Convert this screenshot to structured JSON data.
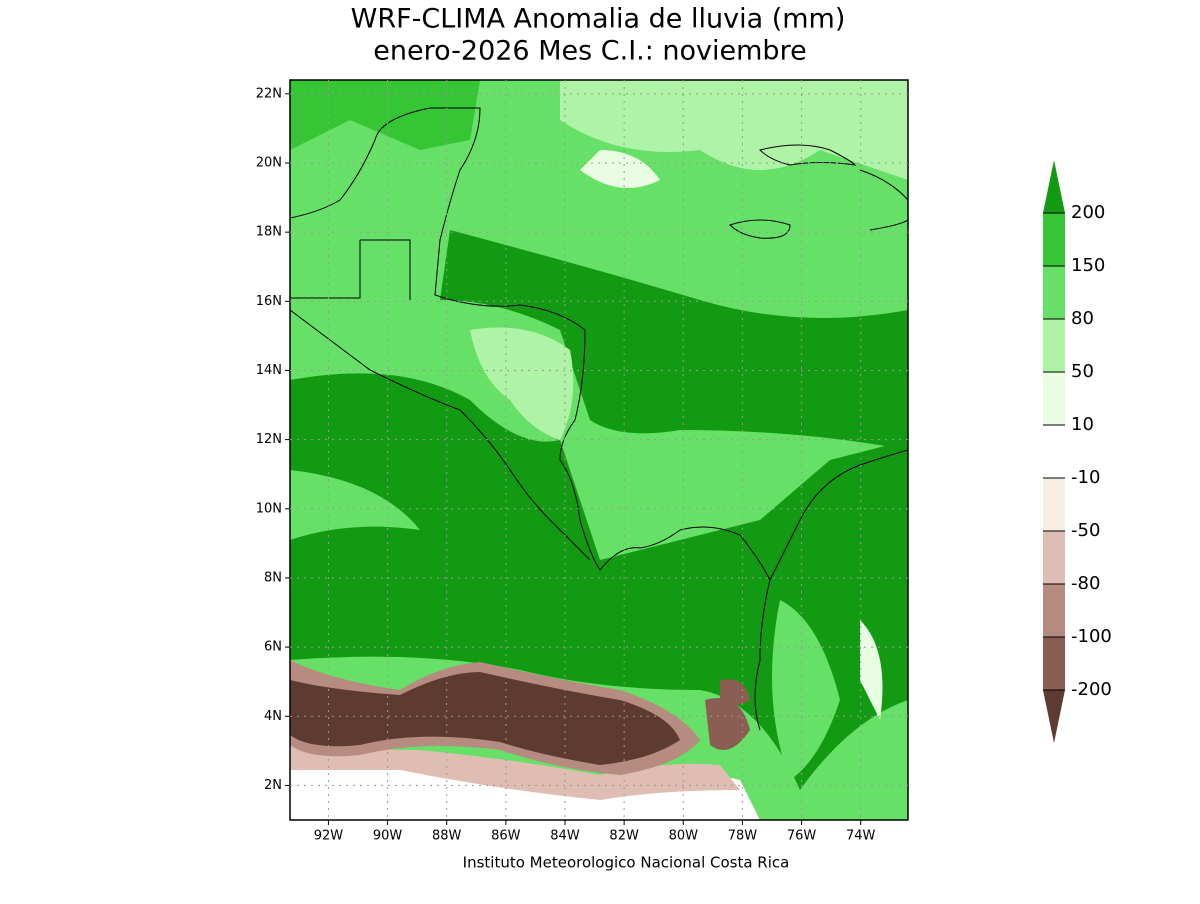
{
  "title": "WRF-CLIMA Anomalia de lluvia (mm)",
  "subtitle": "enero-2026 Mes C.I.: noviembre",
  "footer": "Instituto Meteorologico Nacional Costa Rica",
  "map": {
    "lonlim": [
      -93.3,
      -72.4
    ],
    "latlim": [
      1,
      22.4
    ],
    "grid": true,
    "lon_ticks": [
      {
        "value": -92,
        "label": "92W"
      },
      {
        "value": -90,
        "label": "90W"
      },
      {
        "value": -88,
        "label": "88W"
      },
      {
        "value": -86,
        "label": "86W"
      },
      {
        "value": -84,
        "label": "84W"
      },
      {
        "value": -82,
        "label": "82W"
      },
      {
        "value": -80,
        "label": "80W"
      },
      {
        "value": -78,
        "label": "78W"
      },
      {
        "value": -76,
        "label": "76W"
      },
      {
        "value": -74,
        "label": "74W"
      }
    ],
    "lat_ticks": [
      {
        "value": 2,
        "label": "2N"
      },
      {
        "value": 4,
        "label": "4N"
      },
      {
        "value": 6,
        "label": "6N"
      },
      {
        "value": 8,
        "label": "8N"
      },
      {
        "value": 10,
        "label": "10N"
      },
      {
        "value": 12,
        "label": "12N"
      },
      {
        "value": 14,
        "label": "14N"
      },
      {
        "value": 16,
        "label": "16N"
      },
      {
        "value": 18,
        "label": "18N"
      },
      {
        "value": 20,
        "label": "20N"
      },
      {
        "value": 22,
        "label": "22N"
      }
    ]
  },
  "colorbar": {
    "levels": [
      200,
      150,
      80,
      50,
      10,
      -10,
      -50,
      -80,
      -100,
      -200
    ],
    "colors": [
      "#139a13",
      "#35c535",
      "#66e066",
      "#aef3a6",
      "#e8fde2",
      "#ffffff",
      "#f7efe5",
      "#e0bdb2",
      "#b68c80",
      "#8a5e53",
      "#5e3b31"
    ]
  }
}
